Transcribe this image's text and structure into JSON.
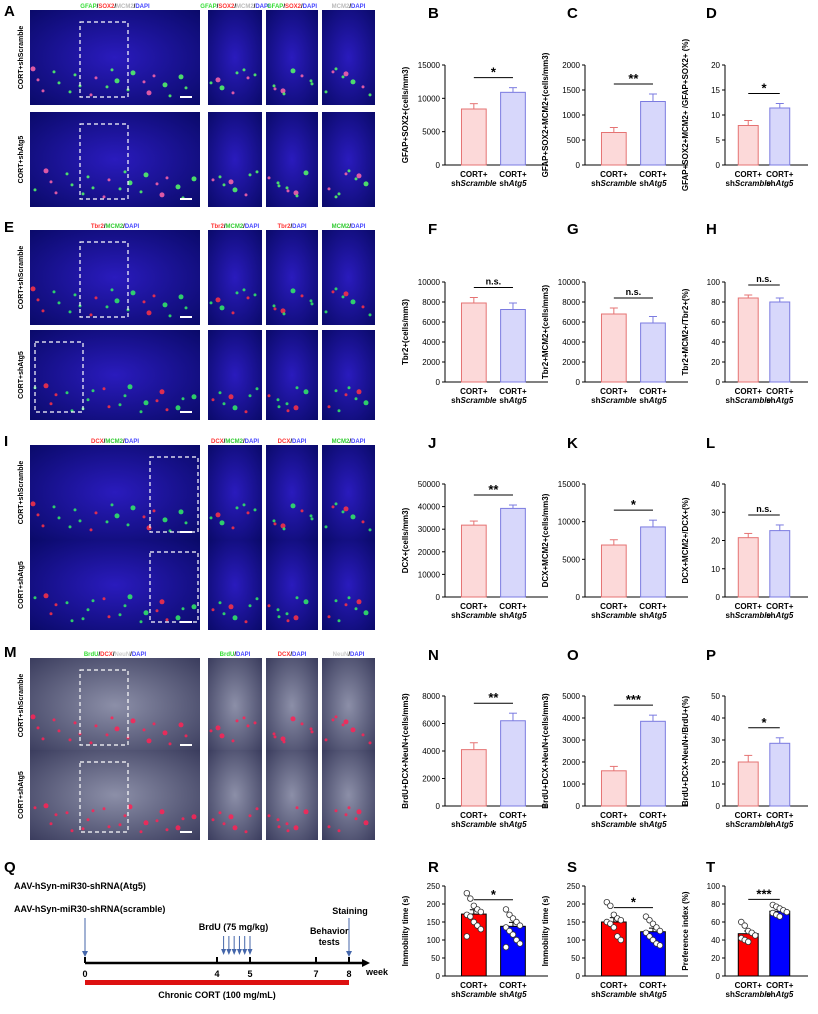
{
  "panel_letters": [
    "A",
    "B",
    "C",
    "D",
    "E",
    "F",
    "G",
    "H",
    "I",
    "J",
    "K",
    "L",
    "M",
    "N",
    "O",
    "P",
    "Q",
    "R",
    "S",
    "T"
  ],
  "categories": [
    "CORT+",
    "shScramble",
    "CORT+",
    "shAtg5"
  ],
  "colors": {
    "ctrl_fill": "#fcd9d9",
    "ctrl_edge": "#e57373",
    "trt_fill": "#d7d7fb",
    "trt_edge": "#7b7be0",
    "red_bar": "#ff0000",
    "blue_bar": "#0000ff"
  },
  "image_rows": [
    {
      "letter": "A",
      "row_labels": [
        "CORT+shScramble",
        "CORT+shAtg5"
      ],
      "channels": [
        [
          "GFAP",
          "SOX2",
          "MCM2",
          "DAPI"
        ],
        [
          "GFAP",
          "SOX2",
          "MCM2",
          "DAPI"
        ],
        [
          "GFAP",
          "SOX2",
          "DAPI"
        ],
        [
          "MCM2",
          "DAPI"
        ]
      ]
    },
    {
      "letter": "E",
      "row_labels": [
        "CORT+shScramble",
        "CORT+shAtg5"
      ],
      "channels": [
        [
          "Tbr2",
          "MCM2",
          "DAPI"
        ],
        [
          "Tbr2",
          "MCM2",
          "DAPI"
        ],
        [
          "Tbr2",
          "DAPI"
        ],
        [
          "MCM2",
          "DAPI"
        ]
      ]
    },
    {
      "letter": "I",
      "row_labels": [
        "CORT+shScramble",
        "CORT+shAtg5"
      ],
      "channels": [
        [
          "DCX",
          "MCM2",
          "DAPI"
        ],
        [
          "DCX",
          "MCM2",
          "DAPI"
        ],
        [
          "DCX",
          "DAPI"
        ],
        [
          "MCM2",
          "DAPI"
        ]
      ]
    },
    {
      "letter": "M",
      "row_labels": [
        "CORT+shScramble",
        "CORT+shAtg5"
      ],
      "channels": [
        [
          "BrdU",
          "DCX",
          "NeuN",
          "DAPI"
        ],
        [
          "BrdU",
          "DAPI"
        ],
        [
          "DCX",
          "DAPI"
        ],
        [
          "NeuN",
          "DAPI"
        ]
      ]
    }
  ],
  "chart_data": [
    {
      "letter": "B",
      "type": "bar",
      "ylabel": "GFAP+SOX2+(cells/mm3)",
      "yticks": [
        "0",
        "5000",
        "10000",
        "15000"
      ],
      "ylim": [
        0,
        15000
      ],
      "values": [
        8400,
        10900
      ],
      "errors": [
        800,
        700
      ],
      "sig": "*"
    },
    {
      "letter": "C",
      "type": "bar",
      "ylabel": "GFAP+SOX2+MCM2+(cells/mm3)",
      "yticks": [
        "0",
        "500",
        "1000",
        "1500",
        "2000"
      ],
      "ylim": [
        0,
        2000
      ],
      "values": [
        650,
        1270
      ],
      "errors": [
        100,
        150
      ],
      "sig": "**"
    },
    {
      "letter": "D",
      "type": "bar",
      "ylabel": "GFAP+SOX2+MCM2+ /GFAP+SOX2+ (%)",
      "yticks": [
        "0",
        "5",
        "10",
        "15",
        "20"
      ],
      "ylim": [
        0,
        20
      ],
      "values": [
        7.9,
        11.4
      ],
      "errors": [
        1.0,
        0.9
      ],
      "sig": "*"
    },
    {
      "letter": "F",
      "type": "bar",
      "ylabel": "Tbr2+(cells/mm3)",
      "yticks": [
        "0",
        "2000",
        "4000",
        "6000",
        "8000",
        "10000"
      ],
      "ylim": [
        0,
        10000
      ],
      "values": [
        7900,
        7250
      ],
      "errors": [
        550,
        650
      ],
      "sig": "n.s."
    },
    {
      "letter": "G",
      "type": "bar",
      "ylabel": "Tbr2+MCM2+(cells/mm3)",
      "yticks": [
        "0",
        "2000",
        "4000",
        "6000",
        "8000",
        "10000"
      ],
      "ylim": [
        0,
        10000
      ],
      "values": [
        6800,
        5900
      ],
      "errors": [
        600,
        650
      ],
      "sig": "n.s."
    },
    {
      "letter": "H",
      "type": "bar",
      "ylabel": "Tbr2+MCM2+/Tbr2+(%)",
      "yticks": [
        "0",
        "20",
        "40",
        "60",
        "80",
        "100"
      ],
      "ylim": [
        0,
        100
      ],
      "values": [
        84,
        80
      ],
      "errors": [
        3,
        4
      ],
      "sig": "n.s."
    },
    {
      "letter": "J",
      "type": "bar",
      "ylabel": "DCX+(cells/mm3)",
      "yticks": [
        "0",
        "10000",
        "20000",
        "30000",
        "40000",
        "50000"
      ],
      "ylim": [
        0,
        50000
      ],
      "values": [
        31800,
        39200
      ],
      "errors": [
        1800,
        1500
      ],
      "sig": "**"
    },
    {
      "letter": "K",
      "type": "bar",
      "ylabel": "DCX+MCM2+(cells/mm3)",
      "yticks": [
        "0",
        "5000",
        "10000",
        "15000"
      ],
      "ylim": [
        0,
        15000
      ],
      "values": [
        6900,
        9300
      ],
      "errors": [
        700,
        900
      ],
      "sig": "*"
    },
    {
      "letter": "L",
      "type": "bar",
      "ylabel": "DCX+MCM2+/DCX+(%)",
      "yticks": [
        "0",
        "10",
        "20",
        "30",
        "40"
      ],
      "ylim": [
        0,
        40
      ],
      "values": [
        21,
        23.5
      ],
      "errors": [
        1.5,
        2.0
      ],
      "sig": "n.s."
    },
    {
      "letter": "N",
      "type": "bar",
      "ylabel": "BrdU+DCX+NeuN+(cells/mm3)",
      "yticks": [
        "0",
        "2000",
        "4000",
        "6000",
        "8000"
      ],
      "ylim": [
        0,
        8000
      ],
      "values": [
        4100,
        6200
      ],
      "errors": [
        500,
        550
      ],
      "sig": "**"
    },
    {
      "letter": "O",
      "type": "bar",
      "ylabel": "BrdU+DCX+NeuN+(cells/mm3)",
      "yticks": [
        "0",
        "1000",
        "2000",
        "3000",
        "4000",
        "5000"
      ],
      "ylim": [
        0,
        5000
      ],
      "values": [
        1600,
        3850
      ],
      "errors": [
        200,
        280
      ],
      "sig": "***"
    },
    {
      "letter": "P",
      "type": "bar",
      "ylabel": "BrdU+DCX+NeuN+/BrdU+(%)",
      "yticks": [
        "0",
        "10",
        "20",
        "30",
        "40",
        "50"
      ],
      "ylim": [
        0,
        50
      ],
      "values": [
        20,
        28.5
      ],
      "errors": [
        3,
        2.5
      ],
      "sig": "*"
    },
    {
      "letter": "R",
      "type": "bar",
      "ylabel": "Immobility time (s)",
      "yticks": [
        "0",
        "50",
        "100",
        "150",
        "200",
        "250"
      ],
      "ylim": [
        0,
        250
      ],
      "values": [
        172,
        138
      ],
      "errors": [
        12,
        11
      ],
      "sig": "*",
      "points": [
        [
          230,
          215,
          195,
          185,
          178,
          170,
          165,
          150,
          140,
          130,
          110
        ],
        [
          185,
          170,
          160,
          150,
          140,
          135,
          125,
          115,
          100,
          90,
          80
        ]
      ]
    },
    {
      "letter": "S",
      "type": "bar",
      "ylabel": "Immobility time (s)",
      "yticks": [
        "0",
        "50",
        "100",
        "150",
        "200",
        "250"
      ],
      "ylim": [
        0,
        250
      ],
      "values": [
        150,
        123
      ],
      "errors": [
        12,
        10
      ],
      "sig": "*",
      "points": [
        [
          205,
          195,
          170,
          160,
          155,
          150,
          145,
          135,
          110,
          100
        ],
        [
          165,
          155,
          145,
          135,
          125,
          120,
          110,
          100,
          90,
          85
        ]
      ]
    },
    {
      "letter": "T",
      "type": "bar",
      "ylabel": "Preference index (%)",
      "yticks": [
        "0",
        "20",
        "40",
        "60",
        "80",
        "100"
      ],
      "ylim": [
        0,
        100
      ],
      "values": [
        47,
        72
      ],
      "errors": [
        3,
        2
      ],
      "sig": "***",
      "points": [
        [
          60,
          56,
          50,
          48,
          45,
          42,
          40,
          38
        ],
        [
          79,
          77,
          75,
          73,
          71,
          70,
          68,
          66
        ]
      ]
    }
  ],
  "timeline": {
    "label_atg5": "AAV-hSyn-miR30-shRNA(Atg5)",
    "label_scramble": "AAV-hSyn-miR30-shRNA(scramble)",
    "brdu": "BrdU (75 mg/kg)",
    "behavior": "Behavior",
    "behavior2": "tests",
    "staining": "Staining",
    "cort": "Chronic CORT (100 mg/mL)",
    "unit": "week",
    "ticks": [
      "0",
      "4",
      "5",
      "7",
      "8"
    ],
    "tick_weeks": [
      0,
      4,
      5,
      7,
      8
    ]
  }
}
